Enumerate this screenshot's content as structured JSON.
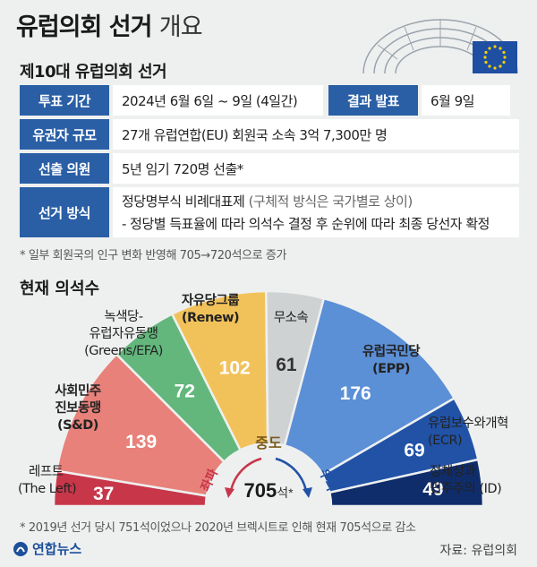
{
  "header": {
    "title_main": "유럽의회 선거",
    "title_sub": "개요",
    "section_title": "제10대 유럽의회 선거"
  },
  "info": {
    "vote_period_label": "투표 기간",
    "vote_period_value": "2024년 6월 6일 ~ 9일 (4일간)",
    "result_label": "결과 발표",
    "result_value": "6월 9일",
    "electorate_label": "유권자 규모",
    "electorate_value": "27개 유럽연합(EU) 회원국 소속 3억 7,300만 명",
    "seats_label": "선출 의원",
    "seats_value": "5년 임기 720명 선출*",
    "method_label": "선거 방식",
    "method_line1_main": "정당명부식 비례대표제",
    "method_line1_note": "(구체적 방식은 국가별로 상이)",
    "method_line2": "- 정당별 득표율에 따라 의석수 결정 후 순위에 따라 최종 당선자 확정"
  },
  "note1": "* 일부 회원국의 인구 변화 반영해 705→720석으로 증가",
  "chart_section_title": "현재 의석수",
  "chart_data": {
    "type": "pie",
    "categories": [
      "레프트 (The Left)",
      "사회민주 진보동맹 (S&D)",
      "녹색당-유럽자유동맹 (Greens/EFA)",
      "자유당그룹 (Renew)",
      "무소속",
      "유럽국민당 (EPP)",
      "유럽보수와개혁 (ECR)",
      "정체성과 민주주의 (ID)"
    ],
    "values": [
      37,
      139,
      72,
      102,
      61,
      176,
      69,
      49
    ],
    "colors": [
      "#c8364a",
      "#e8817a",
      "#63b77c",
      "#f2c25a",
      "#cfd2d3",
      "#5b8fd6",
      "#2152a6",
      "#0f2d6b"
    ],
    "total": "705",
    "total_suffix": "석*",
    "center_label": "중도",
    "left_label": "좌파",
    "right_label": "우파"
  },
  "party_labels": {
    "left": "레프트",
    "left_en": "(The Left)",
    "sd1": "사회민주",
    "sd2": "진보동맹",
    "sd_en": "(S&D)",
    "greens1": "녹색당-",
    "greens2": "유럽자유동맹",
    "greens_en": "(Greens/EFA)",
    "renew": "자유당그룹",
    "renew_en": "(Renew)",
    "ind": "무소속",
    "epp": "유럽국민당",
    "epp_en": "(EPP)",
    "ecr": "유럽보수와개혁",
    "ecr_en": "(ECR)",
    "id1": "정체성과",
    "id2": "민주주의 (ID)"
  },
  "note2": "* 2019년 선거 당시 751석이었으나 2020년 브렉시트로 인해 현재 705석으로 감소",
  "logo": "연합뉴스",
  "source": "자료: 유럽의회"
}
